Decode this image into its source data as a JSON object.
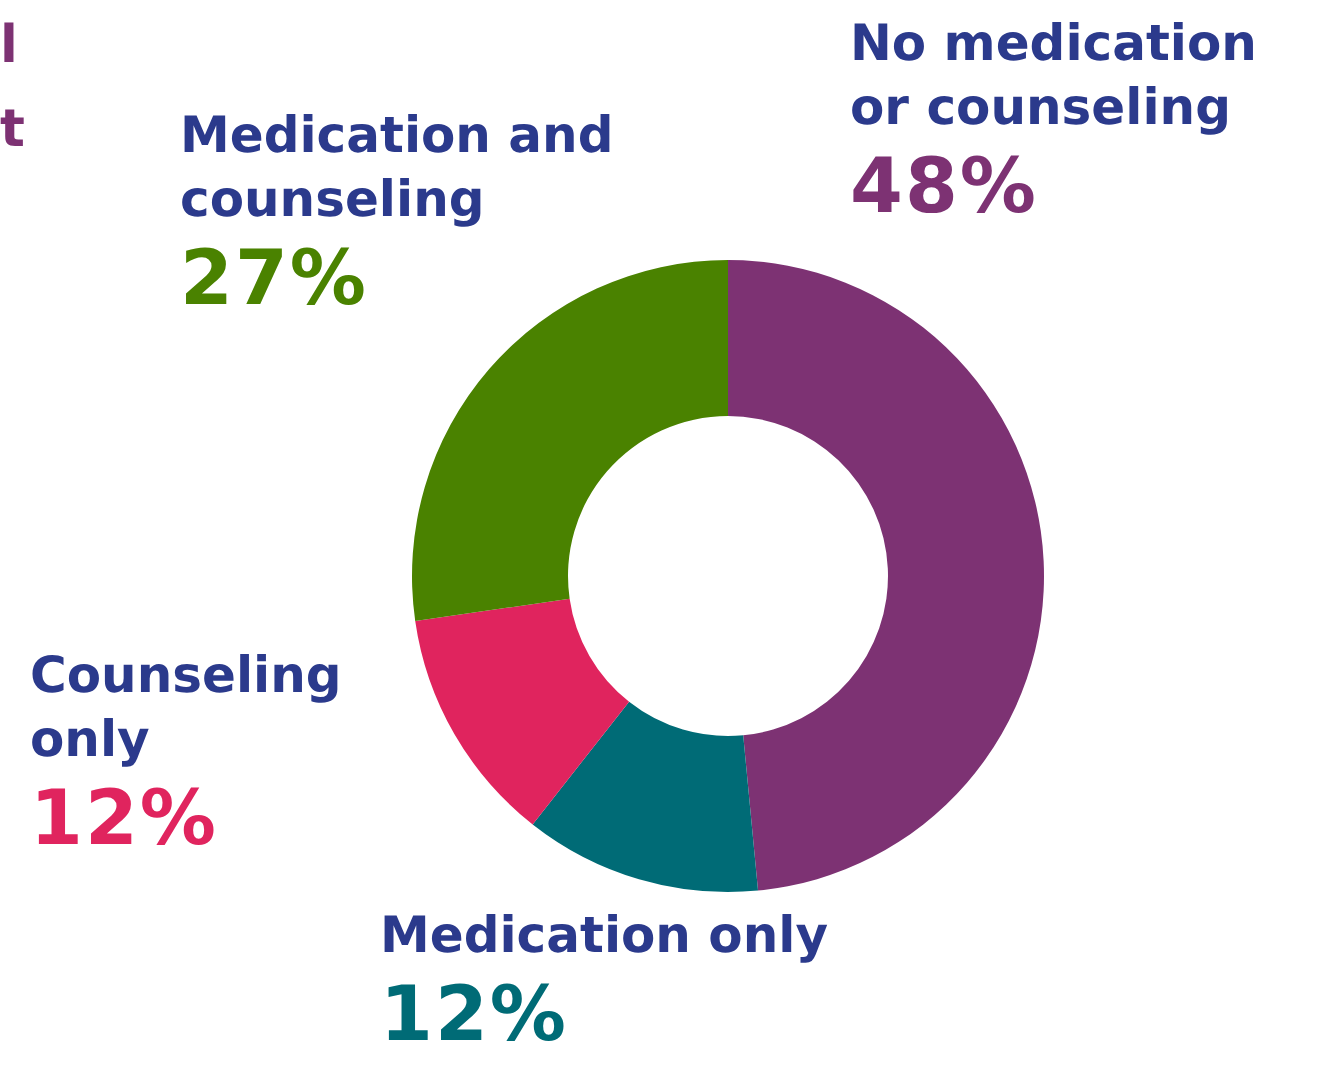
{
  "chart_data": {
    "type": "donut",
    "categories": [
      "No medication or counseling",
      "Medication only",
      "Counseling only",
      "Medication and counseling"
    ],
    "values": [
      48,
      12,
      12,
      27
    ],
    "colors": [
      "#7d3273",
      "#006b76",
      "#e0245e",
      "#4a8200"
    ],
    "value_labels": [
      "48%",
      "12%",
      "12%",
      "27%"
    ],
    "annotations": [
      "l",
      "t"
    ]
  }
}
